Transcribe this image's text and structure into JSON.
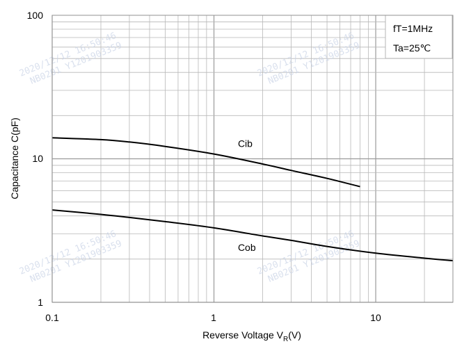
{
  "chart_data": {
    "type": "line",
    "x_scale": "log",
    "y_scale": "log",
    "xlim": [
      0.1,
      30
    ],
    "ylim": [
      1,
      100
    ],
    "x_ticks": [
      "0.1",
      "1",
      "10"
    ],
    "y_ticks": [
      "1",
      "10",
      "100"
    ],
    "xlabel_prefix": "Reverse Voltage  V",
    "xlabel_sub": "R",
    "xlabel_suffix": "(V)",
    "ylabel": "Capacitance  C(pF)",
    "grid": true,
    "conditions": [
      "fT=1MHz",
      "Ta=25℃"
    ],
    "series": [
      {
        "name": "Cib",
        "color": "#000000",
        "x": [
          0.1,
          0.2,
          0.3,
          0.5,
          1,
          2,
          3,
          5,
          8
        ],
        "y": [
          14.0,
          13.6,
          13.1,
          12.2,
          10.8,
          9.2,
          8.3,
          7.3,
          6.4
        ]
      },
      {
        "name": "Cob",
        "color": "#000000",
        "x": [
          0.1,
          0.2,
          0.3,
          0.5,
          1,
          2,
          3,
          5,
          10,
          20,
          30
        ],
        "y": [
          4.4,
          4.1,
          3.9,
          3.65,
          3.3,
          2.9,
          2.7,
          2.45,
          2.2,
          2.03,
          1.95
        ]
      }
    ]
  },
  "watermarks": [
    {
      "line1": "2020/12/12  16:50:46",
      "line2": "NB0201 Y1201903359"
    },
    {
      "line1": "2020/12/12  16:50:46",
      "line2": "NB0201 Y1201903359"
    },
    {
      "line1": "2020/12/12  16:50:46",
      "line2": "NB0201 Y1201903359"
    },
    {
      "line1": "2020/12/12  16:50:46",
      "line2": "NB0201 Y1201903359"
    }
  ]
}
